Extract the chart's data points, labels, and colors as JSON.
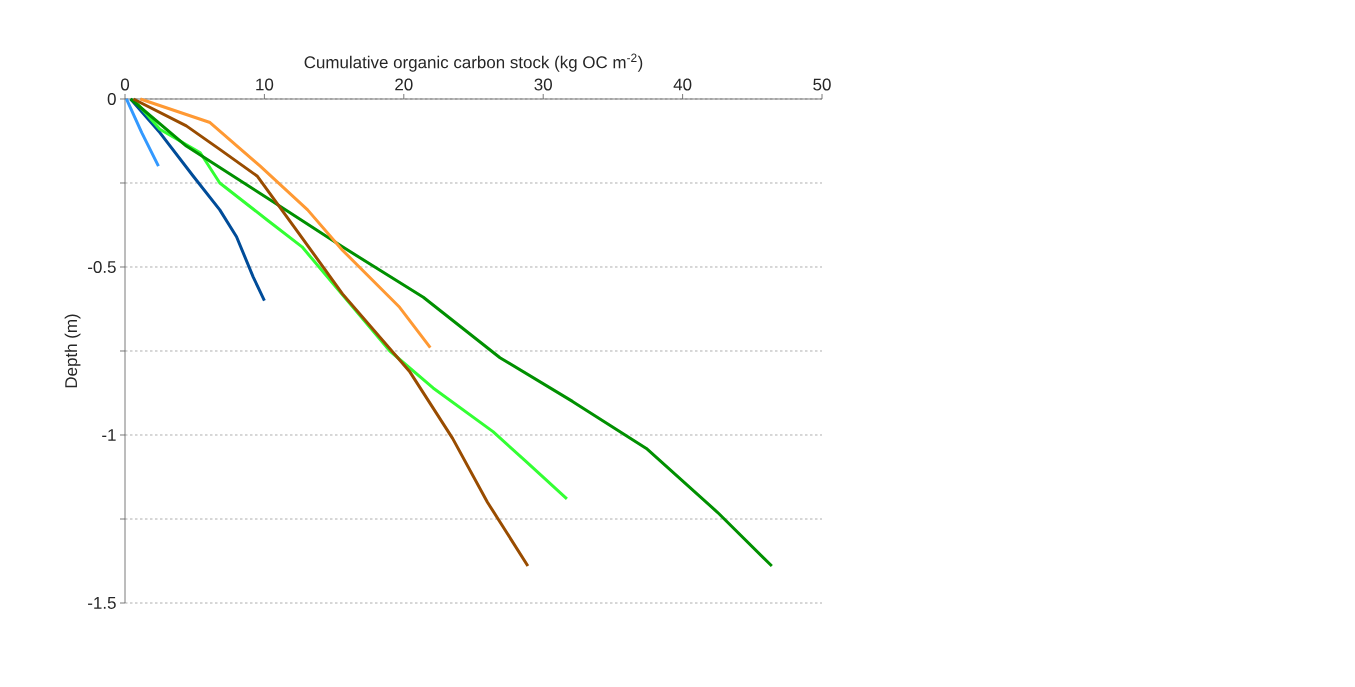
{
  "chart_data": {
    "type": "line",
    "xlabel": "Cumulative organic carbon stock (kg OC m$^{-2}$)",
    "ylabel": "Depth (m)",
    "xlim": [
      0,
      50
    ],
    "xticks": [
      0,
      10,
      20,
      30,
      40,
      50
    ],
    "ylim": [
      -1.5,
      0
    ],
    "yticks": [
      0,
      {
        "value": -0.25,
        "label": null
      },
      -0.5,
      {
        "value": -0.75,
        "label": null
      },
      -1,
      {
        "value": -1.25,
        "label": null
      },
      -1.5
    ],
    "grid": "y",
    "series": [
      {
        "color": "#3399ff",
        "x": [
          0.1,
          1.2,
          2.4
        ],
        "values": [
          0,
          -0.1,
          -0.2
        ]
      },
      {
        "color": "#004c99",
        "x": [
          0.4,
          2.5,
          4.9,
          6.8,
          8.0,
          9.2,
          10.0
        ],
        "values": [
          0,
          -0.1,
          -0.23,
          -0.33,
          -0.41,
          -0.53,
          -0.6
        ]
      },
      {
        "color": "#33ff33",
        "x": [
          0.6,
          2.5,
          5.4,
          6.8,
          10.2,
          12.7,
          19.0,
          22.1,
          26.4,
          28.8,
          31.7
        ],
        "values": [
          0,
          -0.09,
          -0.16,
          -0.25,
          -0.36,
          -0.44,
          -0.75,
          -0.86,
          -0.99,
          -1.08,
          -1.19
        ]
      },
      {
        "color": "#009000",
        "x": [
          0.4,
          4.4,
          10.4,
          15.6,
          21.4,
          26.9,
          32.1,
          37.4,
          42.5,
          46.4
        ],
        "values": [
          0,
          -0.14,
          -0.3,
          -0.44,
          -0.59,
          -0.77,
          -0.9,
          -1.04,
          -1.23,
          -1.39
        ]
      },
      {
        "color": "#ff9933",
        "x": [
          1.1,
          6.1,
          9.7,
          13.1,
          15.6,
          19.7,
          21.9
        ],
        "values": [
          0,
          -0.07,
          -0.2,
          -0.33,
          -0.45,
          -0.62,
          -0.74
        ]
      },
      {
        "color": "#994c00",
        "x": [
          0.6,
          4.4,
          6.8,
          9.5,
          12.3,
          15.6,
          20.4,
          23.5,
          26.0,
          28.9
        ],
        "values": [
          0,
          -0.08,
          -0.15,
          -0.23,
          -0.39,
          -0.58,
          -0.81,
          -1.01,
          -1.2,
          -1.39
        ]
      }
    ]
  }
}
